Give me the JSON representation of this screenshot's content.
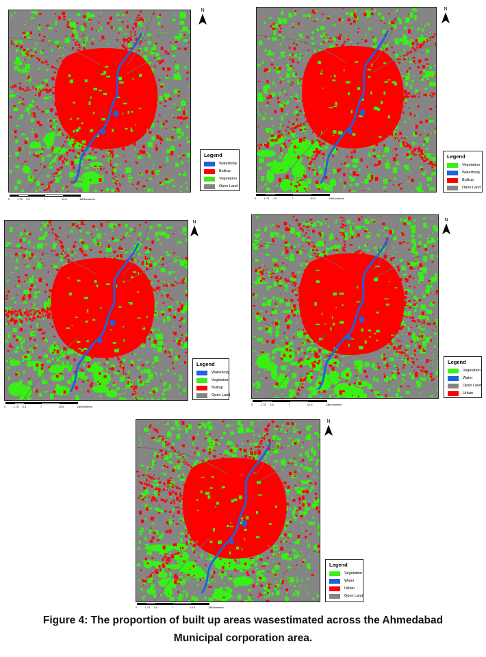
{
  "colors": {
    "builtup": "#ff0000",
    "vegetation": "#38f015",
    "water": "#1e63d8",
    "openland": "#858585"
  },
  "north_label": "N",
  "legend_title": "Legend",
  "scale": {
    "ticks": [
      "0",
      "1.75",
      "3.5",
      "7",
      "10.5",
      "14"
    ],
    "unit": "Kilometers"
  },
  "panels": [
    {
      "legend_items": [
        {
          "label": "Waterbody",
          "color": "#1e63d8"
        },
        {
          "label": "Builtup",
          "color": "#ff0000"
        },
        {
          "label": "Vegetation",
          "color": "#38f015"
        },
        {
          "label": "Open Land",
          "color": "#858585"
        }
      ]
    },
    {
      "legend_items": [
        {
          "label": "Vegetation",
          "color": "#38f015"
        },
        {
          "label": "Waterbody",
          "color": "#1e63d8"
        },
        {
          "label": "Builtup",
          "color": "#ff0000"
        },
        {
          "label": "Open Land",
          "color": "#858585"
        }
      ]
    },
    {
      "legend_items": [
        {
          "label": "Waterbody",
          "color": "#1e63d8"
        },
        {
          "label": "Vegetation",
          "color": "#38f015"
        },
        {
          "label": "Builtup",
          "color": "#ff0000"
        },
        {
          "label": "Open Land",
          "color": "#858585"
        }
      ]
    },
    {
      "legend_items": [
        {
          "label": "Vegetation",
          "color": "#38f015"
        },
        {
          "label": "Water",
          "color": "#1e63d8"
        },
        {
          "label": "Open Land",
          "color": "#858585"
        },
        {
          "label": "Urban",
          "color": "#ff0000"
        }
      ]
    },
    {
      "legend_items": [
        {
          "label": "Vegetation",
          "color": "#38f015"
        },
        {
          "label": "Water",
          "color": "#1e63d8"
        },
        {
          "label": "Urban",
          "color": "#ff0000"
        },
        {
          "label": "Open Land",
          "color": "#858585"
        }
      ]
    }
  ],
  "caption": {
    "line1": "Figure 4: The proportion of built up areas wasestimated across the Ahmedabad",
    "line2": "Municipal corporation area."
  }
}
